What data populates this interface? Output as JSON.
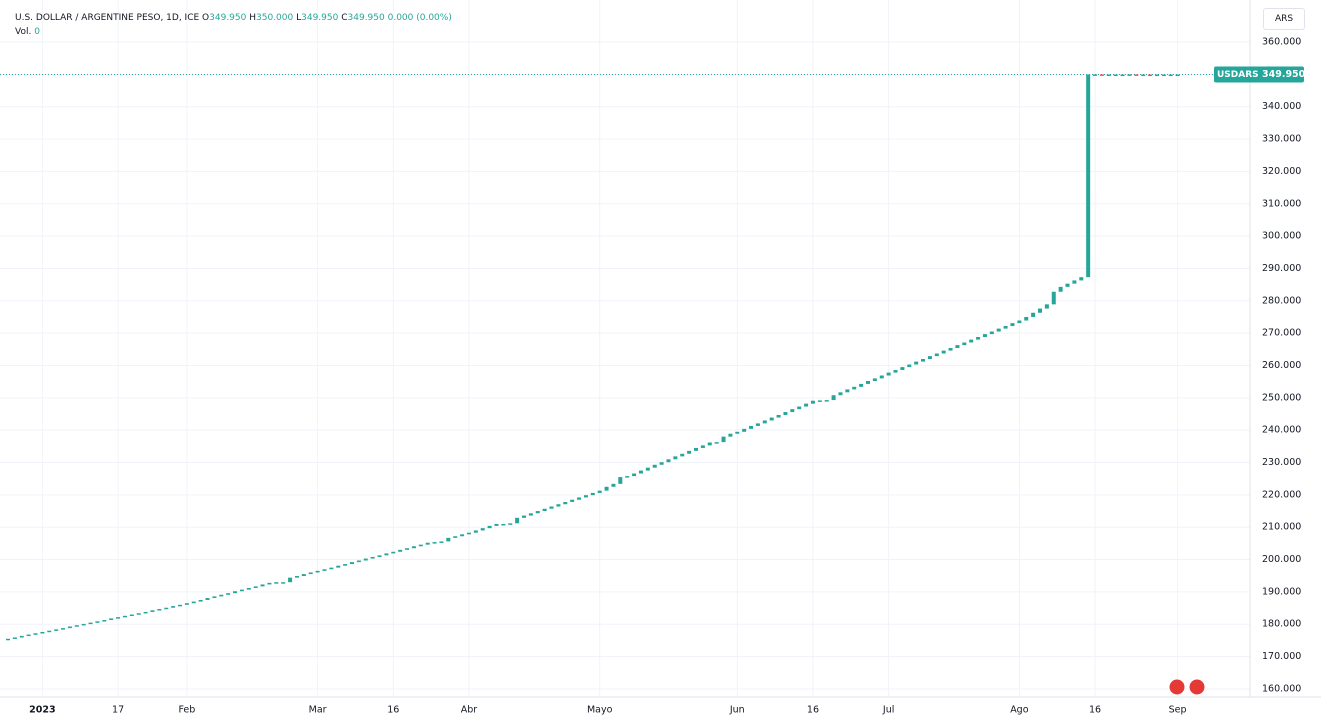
{
  "header": {
    "title": "U.S. DOLLAR / ARGENTINE PESO, 1D, ICE",
    "ohlc": [
      {
        "key": "O",
        "value": "349.950"
      },
      {
        "key": "H",
        "value": "350.000"
      },
      {
        "key": "L",
        "value": "349.950"
      },
      {
        "key": "C",
        "value": "349.950"
      }
    ],
    "change": "0.000 (0.00%)",
    "volume_label": "Vol.",
    "volume": "0"
  },
  "currency": "ARS",
  "chart_data": {
    "type": "candlestick",
    "symbol": "USDARS",
    "last_label": "349.950",
    "color_up": "#26a69a",
    "color_down": "#ef5350",
    "grid": true,
    "values": [
      175.5,
      175.9,
      176.4,
      176.8,
      177.2,
      177.6,
      178.0,
      178.4,
      178.8,
      179.3,
      179.7,
      180.1,
      180.5,
      180.9,
      181.3,
      181.8,
      182.2,
      182.6,
      183.0,
      183.4,
      183.8,
      184.3,
      184.7,
      185.1,
      185.6,
      186.0,
      186.5,
      187.0,
      187.5,
      188.1,
      188.6,
      189.1,
      189.6,
      190.2,
      190.7,
      191.2,
      191.7,
      192.3,
      192.8,
      193.0,
      193.0,
      194.4,
      194.9,
      195.5,
      196.0,
      196.5,
      197.0,
      197.5,
      198.1,
      198.6,
      199.2,
      199.7,
      200.3,
      200.8,
      201.3,
      201.9,
      202.4,
      203.0,
      203.5,
      204.1,
      204.6,
      205.2,
      205.4,
      205.6,
      206.7,
      207.2,
      207.8,
      208.3,
      209.0,
      209.7,
      210.4,
      211.0,
      211.0,
      211.2,
      212.9,
      213.6,
      214.3,
      215.0,
      215.7,
      216.4,
      217.1,
      217.8,
      218.5,
      219.2,
      219.9,
      220.6,
      221.3,
      222.5,
      223.4,
      225.5,
      225.8,
      226.6,
      227.5,
      228.4,
      229.3,
      230.1,
      231.0,
      231.9,
      232.7,
      233.6,
      234.5,
      235.3,
      236.2,
      236.3,
      238.0,
      238.9,
      239.5,
      240.4,
      241.3,
      242.1,
      243.0,
      243.9,
      244.7,
      245.6,
      246.5,
      247.3,
      248.2,
      249.1,
      249.2,
      249.3,
      250.8,
      251.7,
      252.6,
      253.4,
      254.3,
      255.2,
      256.0,
      256.9,
      257.8,
      258.6,
      259.5,
      260.3,
      261.2,
      262.0,
      262.9,
      263.7,
      264.6,
      265.4,
      266.3,
      267.1,
      268.0,
      268.8,
      269.7,
      270.5,
      271.4,
      272.2,
      273.1,
      273.9,
      275.0,
      276.3,
      277.6,
      278.9,
      282.8,
      284.3,
      285.3,
      286.3,
      287.3,
      349.95,
      350.0,
      349.9,
      349.95,
      349.95,
      349.95,
      350.0,
      349.95,
      349.95,
      349.9,
      349.95,
      349.95,
      349.95,
      349.95
    ],
    "ylim": [
      157.5,
      373
    ],
    "yticks": [
      {
        "value": 160,
        "label": "160.000"
      },
      {
        "value": 170,
        "label": "170.000"
      },
      {
        "value": 180,
        "label": "180.000"
      },
      {
        "value": 190,
        "label": "190.000"
      },
      {
        "value": 200,
        "label": "200.000"
      },
      {
        "value": 210,
        "label": "210.000"
      },
      {
        "value": 220,
        "label": "220.000"
      },
      {
        "value": 230,
        "label": "230.000"
      },
      {
        "value": 240,
        "label": "240.000"
      },
      {
        "value": 250,
        "label": "250.000"
      },
      {
        "value": 260,
        "label": "260.000"
      },
      {
        "value": 270,
        "label": "270.000"
      },
      {
        "value": 280,
        "label": "280.000"
      },
      {
        "value": 290,
        "label": "290.000"
      },
      {
        "value": 300,
        "label": "300.000"
      },
      {
        "value": 310,
        "label": "310.000"
      },
      {
        "value": 320,
        "label": "320.000"
      },
      {
        "value": 330,
        "label": "330.000"
      },
      {
        "value": 340,
        "label": "340.000"
      },
      {
        "value": 350,
        "label": "350.000"
      },
      {
        "value": 360,
        "label": "360.000"
      }
    ],
    "xticks": [
      {
        "value": 5,
        "label": "2023"
      },
      {
        "value": 16,
        "label": "17"
      },
      {
        "value": 26,
        "label": "Feb"
      },
      {
        "value": 45,
        "label": "Mar"
      },
      {
        "value": 56,
        "label": "16"
      },
      {
        "value": 67,
        "label": "Abr"
      },
      {
        "value": 86,
        "label": "Mayo"
      },
      {
        "value": 106,
        "label": "Jun"
      },
      {
        "value": 117,
        "label": "16"
      },
      {
        "value": 128,
        "label": "Jul"
      },
      {
        "value": 147,
        "label": "Ago"
      },
      {
        "value": 158,
        "label": "16"
      },
      {
        "value": 170,
        "label": "Sep"
      }
    ]
  }
}
